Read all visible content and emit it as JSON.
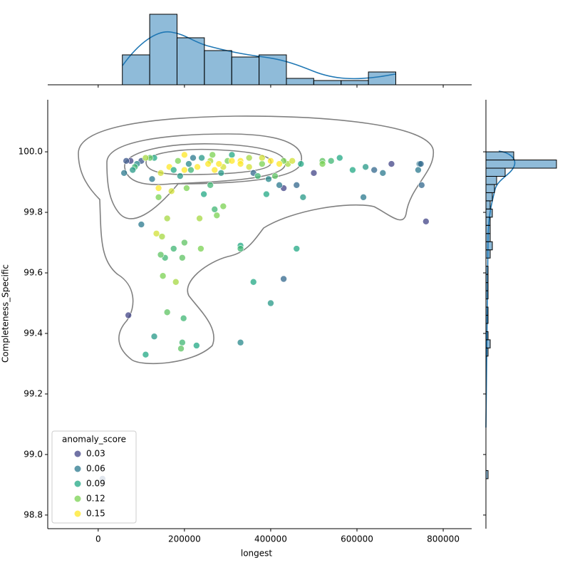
{
  "chart_data": [
    {
      "type": "scatter",
      "x_label": "longest",
      "y_label": "Completeness_Specific",
      "xlim": [
        -117000,
        866000
      ],
      "xticks": [
        0,
        200000,
        400000,
        600000,
        800000
      ],
      "ylim": [
        98.755,
        100.172
      ],
      "yticks": [
        98.8,
        {
          "value": 99,
          "label": "99.0"
        },
        99.2,
        99.4,
        99.6,
        99.8,
        {
          "value": 100,
          "label": "100.0"
        }
      ],
      "legend": "lower left",
      "legend_title": "anomaly_score",
      "hue_legend": [
        {
          "value": 0.03,
          "color": "#414487"
        },
        {
          "value": 0.06,
          "color": "#2a788e"
        },
        {
          "value": 0.09,
          "color": "#22a884"
        },
        {
          "value": 0.12,
          "color": "#7ad151"
        },
        {
          "value": 0.15,
          "color": "#fde725"
        }
      ],
      "x": [
        760000,
        750000,
        745000,
        742000,
        748000,
        680000,
        660000,
        640000,
        615000,
        620000,
        590000,
        560000,
        540000,
        520000,
        520000,
        500000,
        475000,
        470000,
        460000,
        460000,
        430000,
        430000,
        420000,
        400000,
        395000,
        390000,
        380000,
        360000,
        360000,
        370000,
        410000,
        440000,
        450000,
        430000,
        420000,
        400000,
        380000,
        350000,
        330000,
        330000,
        330000,
        330000,
        330000,
        310000,
        300000,
        290000,
        285000,
        280000,
        275000,
        270000,
        290000,
        265000,
        260000,
        260000,
        255000,
        245000,
        240000,
        238000,
        235000,
        230000,
        228000,
        220000,
        215000,
        210000,
        205000,
        200000,
        200000,
        200000,
        195000,
        198000,
        195000,
        192000,
        190000,
        185000,
        180000,
        175000,
        170000,
        165000,
        160000,
        160000,
        155000,
        150000,
        148000,
        145000,
        145000,
        140000,
        140000,
        135000,
        130000,
        130000,
        125000,
        120000,
        110000,
        100000,
        100000,
        90000,
        85000,
        80000,
        75000,
        65000,
        60000,
        70000,
        10000,
        110000,
        175000,
        270000,
        310000,
        350000
      ],
      "values": [
        99.77,
        99.89,
        99.96,
        99.94,
        99.96,
        99.96,
        99.93,
        99.94,
        99.85,
        99.95,
        99.94,
        99.98,
        99.97,
        99.97,
        99.96,
        99.93,
        99.85,
        99.96,
        99.89,
        99.68,
        99.58,
        99.88,
        99.89,
        99.5,
        99.91,
        99.86,
        99.96,
        99.57,
        99.93,
        99.92,
        99.92,
        99.96,
        99.97,
        99.97,
        99.96,
        99.97,
        99.98,
        99.98,
        99.97,
        99.96,
        99.69,
        99.68,
        99.37,
        99.99,
        99.97,
        99.95,
        99.93,
        99.96,
        99.79,
        99.81,
        99.82,
        99.99,
        99.97,
        99.89,
        99.96,
        99.86,
        99.98,
        99.68,
        99.78,
        99.95,
        99.36,
        99.98,
        99.94,
        99.96,
        99.88,
        99.99,
        99.94,
        99.7,
        99.65,
        99.45,
        99.37,
        99.35,
        99.92,
        99.97,
        99.57,
        99.68,
        99.87,
        99.95,
        99.78,
        99.47,
        99.65,
        99.59,
        99.72,
        99.66,
        99.93,
        99.85,
        99.88,
        99.73,
        99.39,
        99.98,
        99.91,
        99.98,
        99.33,
        99.76,
        99.97,
        99.96,
        99.95,
        99.94,
        99.97,
        99.97,
        99.93,
        99.46,
        98.92,
        99.98,
        99.94,
        99.94,
        99.97,
        99.95
      ],
      "hue": [
        0.03,
        0.05,
        0.06,
        0.06,
        0.05,
        0.03,
        0.06,
        0.05,
        0.06,
        0.08,
        0.09,
        0.09,
        0.1,
        0.11,
        0.12,
        0.03,
        0.08,
        0.09,
        0.05,
        0.09,
        0.05,
        0.03,
        0.06,
        0.08,
        0.07,
        0.09,
        0.12,
        0.09,
        0.05,
        0.1,
        0.11,
        0.13,
        0.14,
        0.12,
        0.15,
        0.16,
        0.14,
        0.13,
        0.15,
        0.16,
        0.09,
        0.1,
        0.07,
        0.09,
        0.12,
        0.14,
        0.08,
        0.15,
        0.12,
        0.1,
        0.12,
        0.12,
        0.13,
        0.1,
        0.15,
        0.09,
        0.08,
        0.12,
        0.13,
        0.16,
        0.09,
        0.06,
        0.1,
        0.07,
        0.12,
        0.15,
        0.15,
        0.11,
        0.11,
        0.1,
        0.1,
        0.11,
        0.08,
        0.12,
        0.13,
        0.1,
        0.14,
        0.16,
        0.13,
        0.11,
        0.1,
        0.12,
        0.13,
        0.11,
        0.14,
        0.12,
        0.15,
        0.14,
        0.08,
        0.09,
        0.06,
        0.11,
        0.09,
        0.06,
        0.04,
        0.07,
        0.1,
        0.08,
        0.03,
        0.04,
        0.06,
        0.03,
        0.04,
        0.13,
        0.09,
        0.16,
        0.16,
        0.14
      ]
    },
    {
      "type": "histogram",
      "orientation": "vertical",
      "color": "#1f77b4",
      "ylim": [
        0,
        35
      ],
      "bins": [
        56000,
        119400,
        182800,
        246200,
        309600,
        373000,
        436400,
        499800,
        563200,
        626600,
        690000
      ],
      "values": [
        14,
        33,
        22,
        16,
        13,
        14,
        3,
        2,
        2,
        6
      ]
    },
    {
      "type": "histogram",
      "orientation": "horizontal",
      "color": "#1f77b4",
      "xlim": [
        0,
        35
      ],
      "bins": [
        98.92,
        98.947,
        98.974,
        99.001,
        99.028,
        99.055,
        99.082,
        99.109,
        99.136,
        99.163,
        99.19,
        99.217,
        99.244,
        99.271,
        99.298,
        99.325,
        99.352,
        99.379,
        99.406,
        99.433,
        99.46,
        99.487,
        99.514,
        99.541,
        99.568,
        99.595,
        99.622,
        99.649,
        99.676,
        99.703,
        99.73,
        99.757,
        99.784,
        99.811,
        99.838,
        99.865,
        99.892,
        99.919,
        99.946,
        99.973,
        100.0
      ],
      "values": [
        1,
        0,
        0,
        0,
        0,
        0,
        0,
        0,
        0,
        0,
        0,
        0,
        0,
        0,
        0,
        1,
        2,
        1,
        0,
        1,
        1,
        0,
        1,
        1,
        1,
        1,
        0,
        2,
        3,
        2,
        2,
        2,
        3,
        2,
        3,
        4,
        5,
        9,
        33,
        13
      ]
    }
  ]
}
